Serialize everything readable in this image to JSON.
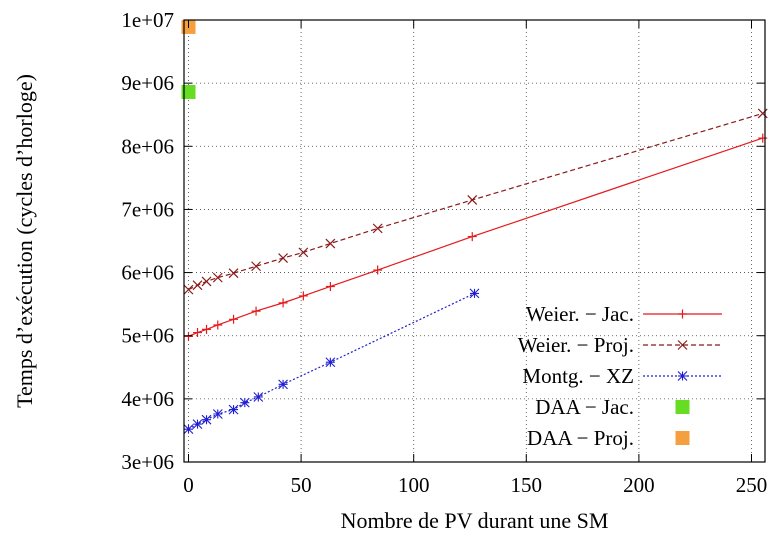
{
  "chart_data": {
    "type": "line",
    "title": "",
    "xlabel": "Nombre de PV durant une SM",
    "ylabel": "Temps d’exécution (cycles d’horloge)",
    "xlim": [
      -2,
      256
    ],
    "ylim": [
      3000000,
      10000000
    ],
    "x_ticks": [
      0,
      50,
      100,
      150,
      200,
      250
    ],
    "x_tick_labels": [
      "0",
      "50",
      "100",
      "150",
      "200",
      "250"
    ],
    "y_ticks": [
      3000000,
      4000000,
      5000000,
      6000000,
      7000000,
      8000000,
      9000000,
      10000000
    ],
    "y_tick_labels": [
      "3e+06",
      "4e+06",
      "5e+06",
      "6e+06",
      "7e+06",
      "8e+06",
      "9e+06",
      "1e+07"
    ],
    "grid": true,
    "legend_position": "bottom-right",
    "series": [
      {
        "name": "Weier. − Jac.",
        "color": "#e41a1c",
        "line": "solid",
        "marker": "plus",
        "x": [
          0,
          4,
          8,
          13,
          20,
          30,
          42,
          51,
          63,
          84,
          126,
          255
        ],
        "y": [
          4990000,
          5050000,
          5100000,
          5170000,
          5260000,
          5390000,
          5520000,
          5630000,
          5780000,
          6040000,
          6570000,
          8130000
        ]
      },
      {
        "name": "Weier. − Proj.",
        "color": "#8b1a1a",
        "line": "dashed",
        "marker": "cross",
        "x": [
          0,
          4,
          8,
          13,
          20,
          30,
          42,
          51,
          63,
          84,
          126,
          255
        ],
        "y": [
          5730000,
          5800000,
          5860000,
          5920000,
          5990000,
          6100000,
          6230000,
          6320000,
          6460000,
          6700000,
          7150000,
          8520000
        ]
      },
      {
        "name": "Montg. − XZ",
        "color": "#1e1ed2",
        "line": "dotted",
        "marker": "star",
        "x": [
          0,
          4,
          8,
          13,
          20,
          25,
          31,
          42,
          63,
          127
        ],
        "y": [
          3520000,
          3600000,
          3670000,
          3760000,
          3830000,
          3940000,
          4030000,
          4230000,
          4580000,
          5670000
        ]
      },
      {
        "name": "DAA − Jac.",
        "color": "#66dd22",
        "line": "none",
        "marker": "square",
        "x": [
          0
        ],
        "y": [
          8860000
        ]
      },
      {
        "name": "DAA − Proj.",
        "color": "#f5a040",
        "line": "none",
        "marker": "square",
        "x": [
          0
        ],
        "y": [
          9890000
        ]
      }
    ]
  }
}
